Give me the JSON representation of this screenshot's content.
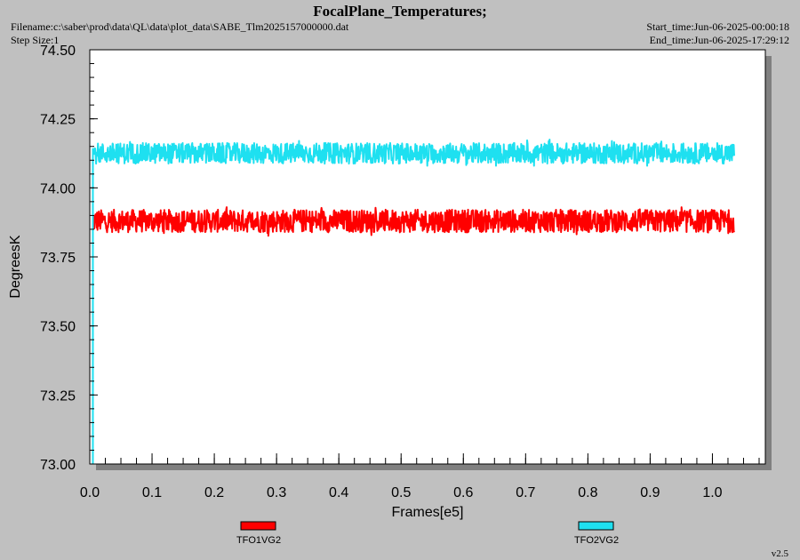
{
  "header": {
    "title": "FocalPlane_Temperatures;",
    "filename": "Filename:c:\\saber\\prod\\data\\QL\\data\\plot_data\\SABE_Tlm2025157000000.dat",
    "step_size": "Step Size:1",
    "start_time": "Start_time:Jun-06-2025-00:00:18",
    "end_time": "End_time:Jun-06-2025-17:29:12"
  },
  "footer": {
    "version": "v2.5"
  },
  "colors": {
    "background": "#c0c0c0",
    "plot_area": "#ffffff",
    "shadow": "#808080",
    "series1": "#ff0000",
    "series2": "#1ee0f0"
  },
  "chart_data": {
    "type": "line",
    "title": "FocalPlane_Temperatures;",
    "xlabel": "Frames[e5]",
    "ylabel": "DegreesK",
    "xlim": [
      0.0,
      1.085
    ],
    "ylim": [
      73.0,
      74.5
    ],
    "x_ticks": [
      "0.0",
      "0.1",
      "0.2",
      "0.3",
      "0.4",
      "0.5",
      "0.6",
      "0.7",
      "0.8",
      "0.9",
      "1.0"
    ],
    "y_ticks": [
      "73.00",
      "73.25",
      "73.50",
      "73.75",
      "74.00",
      "74.25",
      "74.50"
    ],
    "grid": false,
    "legend_position": "bottom",
    "series": [
      {
        "name": "TFO1VG2",
        "color": "#ff0000",
        "start_x": 0.005,
        "end_x": 1.035,
        "mean": 73.88,
        "min": 73.82,
        "max": 73.93
      },
      {
        "name": "TFO2VG2",
        "color": "#1ee0f0",
        "start_x": 0.005,
        "end_x": 1.035,
        "mean": 74.125,
        "min": 74.08,
        "max": 74.18,
        "initial_rise_from": 73.0
      }
    ]
  }
}
